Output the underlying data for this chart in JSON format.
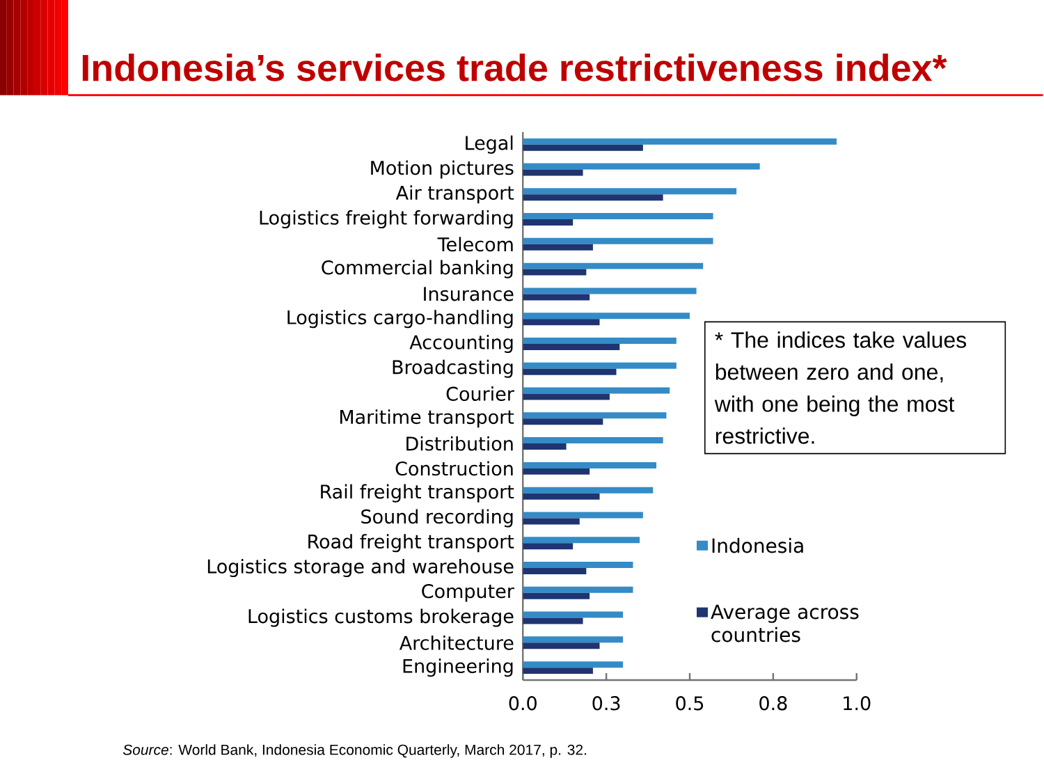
{
  "chart_data": {
    "type": "bar",
    "orientation": "horizontal",
    "title": "Indonesia’s services trade restrictiveness index*",
    "categories": [
      "Legal",
      "Motion pictures",
      "Air transport",
      "Logistics freight forwarding",
      "Telecom",
      "Commercial banking",
      "Insurance",
      "Logistics cargo-handling",
      "Accounting",
      "Broadcasting",
      "Courier",
      "Maritime transport",
      "Distribution",
      "Construction",
      "Rail freight transport",
      "Sound recording",
      "Road freight transport",
      "Logistics storage and warehouse",
      "Computer",
      "Logistics customs brokerage",
      "Architecture",
      "Engineering"
    ],
    "series": [
      {
        "name": "Indonesia",
        "color": "#348bc6",
        "values": [
          0.94,
          0.71,
          0.64,
          0.57,
          0.57,
          0.54,
          0.52,
          0.5,
          0.46,
          0.46,
          0.44,
          0.43,
          0.42,
          0.4,
          0.39,
          0.36,
          0.35,
          0.33,
          0.33,
          0.3,
          0.3,
          0.3
        ]
      },
      {
        "name": "Average across countries",
        "color": "#1f3470",
        "values": [
          0.36,
          0.18,
          0.42,
          0.15,
          0.21,
          0.19,
          0.2,
          0.23,
          0.29,
          0.28,
          0.26,
          0.24,
          0.13,
          0.2,
          0.23,
          0.17,
          0.15,
          0.19,
          0.2,
          0.18,
          0.23,
          0.21
        ]
      }
    ],
    "xlim": [
      0,
      1
    ],
    "xticks": [
      {
        "value": 0,
        "label": "0.0"
      },
      {
        "value": 0.25,
        "label": "0.3"
      },
      0.5,
      {
        "value": 0.75,
        "label": "0.8"
      },
      {
        "value": 1,
        "label": "1.0"
      }
    ],
    "grid": false,
    "legend": "right",
    "annotations": [
      "* The indices take values between zero and one, with one being the most restrictive.",
      "*Source*: World Bank, Indonesia Economic Quarterly, March 2017, p. 32."
    ]
  }
}
